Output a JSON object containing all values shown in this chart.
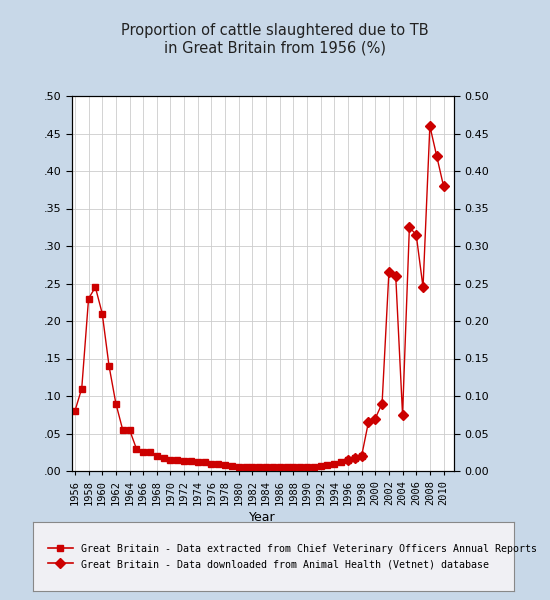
{
  "title": "Proportion of cattle slaughtered due to TB\nin Great Britain from 1956 (%)",
  "xlabel": "Year",
  "background_color": "#c8d8e8",
  "plot_bg_color": "#ffffff",
  "line_color": "#cc0000",
  "ylim": [
    0.0,
    0.5
  ],
  "yticks": [
    0.0,
    0.05,
    0.1,
    0.15,
    0.2,
    0.25,
    0.3,
    0.35,
    0.4,
    0.45,
    0.5
  ],
  "xtick_start": 1956,
  "xtick_end": 2010,
  "xtick_step": 2,
  "legend_label_square": "Great Britain - Data extracted from Chief Veterinary Officers Annual Reports",
  "legend_label_diamond": "Great Britain - Data downloaded from Animal Health (Vetnet) database",
  "series1_years": [
    1956,
    1957,
    1958,
    1959,
    1960,
    1961,
    1962,
    1963,
    1964,
    1965,
    1966,
    1967,
    1968,
    1969,
    1970,
    1971,
    1972,
    1973,
    1974,
    1975,
    1976,
    1977,
    1978,
    1979,
    1980,
    1981,
    1982,
    1983,
    1984,
    1985,
    1986,
    1987,
    1988,
    1989,
    1990,
    1991,
    1992,
    1993,
    1994,
    1995,
    1996,
    1997,
    1998
  ],
  "series1_values": [
    0.08,
    0.11,
    0.23,
    0.245,
    0.21,
    0.14,
    0.09,
    0.055,
    0.055,
    0.03,
    0.025,
    0.025,
    0.02,
    0.018,
    0.015,
    0.015,
    0.013,
    0.013,
    0.012,
    0.012,
    0.01,
    0.01,
    0.008,
    0.007,
    0.006,
    0.006,
    0.005,
    0.005,
    0.005,
    0.005,
    0.005,
    0.005,
    0.005,
    0.005,
    0.005,
    0.006,
    0.007,
    0.008,
    0.01,
    0.012,
    0.015,
    0.018,
    0.02
  ],
  "series2_years": [
    1996,
    1997,
    1998,
    1999,
    2000,
    2001,
    2002,
    2003,
    2004,
    2005,
    2006,
    2007,
    2008,
    2009,
    2010
  ],
  "series2_values": [
    0.015,
    0.018,
    0.02,
    0.065,
    0.07,
    0.09,
    0.265,
    0.26,
    0.075,
    0.325,
    0.315,
    0.245,
    0.46,
    0.42,
    0.38
  ]
}
